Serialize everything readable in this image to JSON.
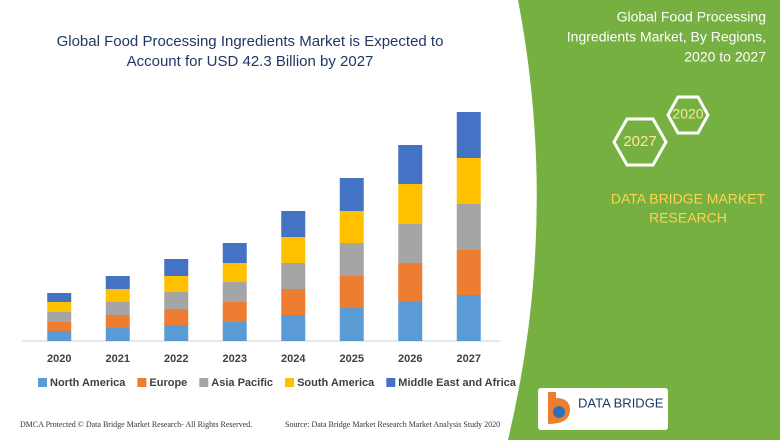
{
  "chart_data": {
    "type": "bar",
    "stacked": true,
    "title": [
      "Global Food Processing Ingredients Market is Expected to",
      "Account for USD 42.3 Billion by 2027"
    ],
    "categories": [
      "2020",
      "2021",
      "2022",
      "2023",
      "2024",
      "2025",
      "2026",
      "2027"
    ],
    "series": [
      {
        "name": "North America",
        "color": "#5b9bd5",
        "values": [
          10,
          13,
          16,
          19,
          26,
          33,
          39,
          46
        ]
      },
      {
        "name": "Europe",
        "color": "#ed7d31",
        "values": [
          9,
          13,
          16,
          20,
          26,
          32,
          39,
          45
        ]
      },
      {
        "name": "Asia Pacific",
        "color": "#a5a5a5",
        "values": [
          10,
          13,
          17,
          20,
          26,
          33,
          39,
          46
        ]
      },
      {
        "name": "South America",
        "color": "#ffc000",
        "values": [
          10,
          13,
          16,
          19,
          26,
          32,
          40,
          46
        ]
      },
      {
        "name": "Middle East and Africa",
        "color": "#4472c4",
        "values": [
          9,
          13,
          17,
          20,
          26,
          33,
          39,
          46
        ]
      }
    ]
  },
  "side_panel": {
    "title_lines": [
      "Global Food Processing",
      "Ingredients Market, By Regions,",
      "2020 to 2027"
    ],
    "hex_labels": [
      "2020",
      "2027"
    ],
    "brand_lines": [
      "DATA BRIDGE MARKET",
      "RESEARCH"
    ],
    "logo": "DATA BRIDGE"
  },
  "footer": {
    "left": "DMCA Protected © Data Bridge Market Research- All Rights Reserved.",
    "right": "Source: Data Bridge Market Research Market Analysis Study 2020"
  }
}
